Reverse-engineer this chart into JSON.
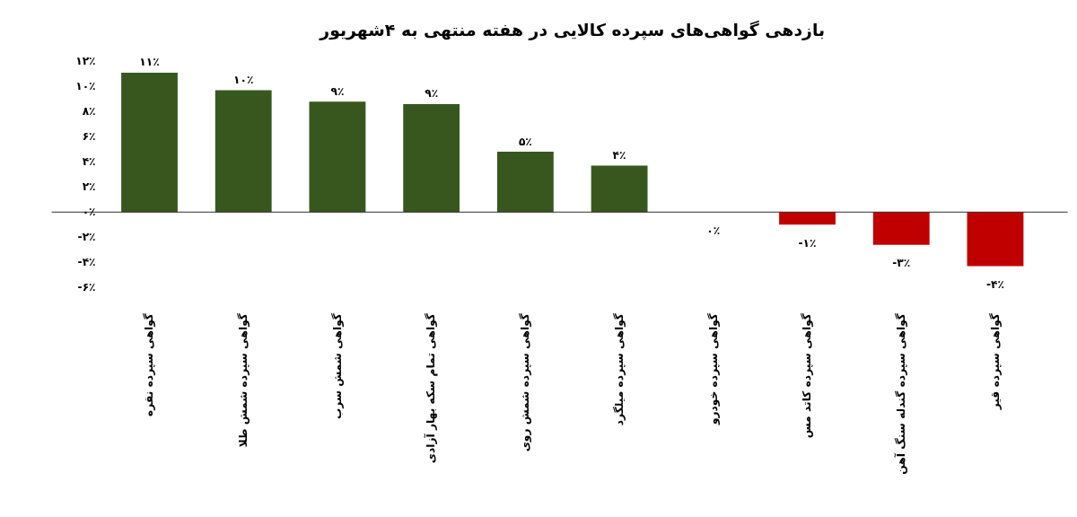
{
  "chart_data": {
    "type": "bar",
    "title": "بازدهی گواهی‌های سپرده کالایی در هفته منتهی به ۴شهریور",
    "categories": [
      "گواهی سپرده نقره",
      "گواهی سپرده شمش طلا",
      "گواهی شمش سرب",
      "گواهی تمام سکه بهار آزادی",
      "گواهی سپرده شمش روی",
      "گواهی سپرده میلگرد",
      "گواهی سپرده خودرو",
      "گواهی سپرده کاتد مس",
      "گواهی سپرده گندله سنگ آهن",
      "گواهی سپرده قیر"
    ],
    "values": [
      11.1,
      9.7,
      8.8,
      8.6,
      4.8,
      3.7,
      0,
      -1.0,
      -2.6,
      -4.3
    ],
    "value_labels": [
      "۱۱٪",
      "۱۰٪",
      "۹٪",
      "۹٪",
      "۵٪",
      "۴٪",
      "۰٪",
      "-۱٪",
      "-۳٪",
      "-۴٪"
    ],
    "colors": [
      "#38571f",
      "#38571f",
      "#38571f",
      "#38571f",
      "#38571f",
      "#38571f",
      "#38571f",
      "#c00000",
      "#c00000",
      "#c00000"
    ],
    "ylim": [
      -6,
      12
    ],
    "yticks": [
      {
        "value": -6,
        "label": "-۶٪"
      },
      {
        "value": -4,
        "label": "-۴٪"
      },
      {
        "value": -2,
        "label": "-۲٪"
      },
      {
        "value": 0,
        "label": "۰٪"
      },
      {
        "value": 2,
        "label": "۲٪"
      },
      {
        "value": 4,
        "label": "۴٪"
      },
      {
        "value": 6,
        "label": "۶٪"
      },
      {
        "value": 8,
        "label": "۸٪"
      },
      {
        "value": 10,
        "label": "۱۰٪"
      },
      {
        "value": 12,
        "label": "۱۲٪"
      }
    ],
    "ref_lines": [
      {
        "axis": "y",
        "value": 0,
        "color": "#222222"
      }
    ],
    "grid": false
  }
}
